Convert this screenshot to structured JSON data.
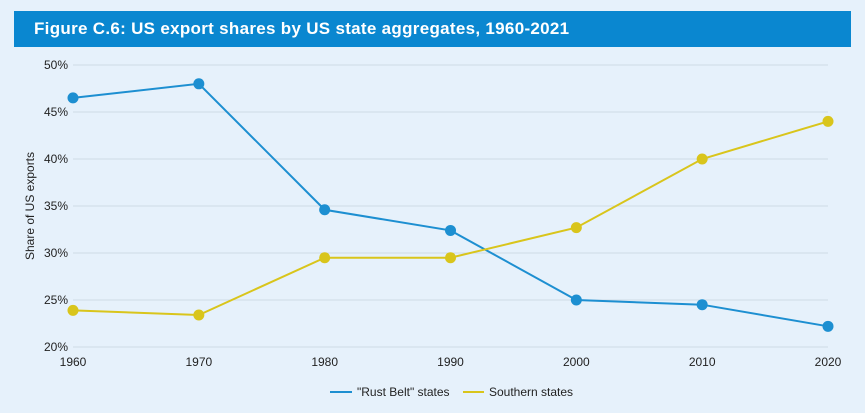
{
  "title": "Figure C.6: US export shares by US state aggregates, 1960-2021",
  "colors": {
    "background": "#e6f1fb",
    "title_bar": "#0a87d0",
    "rust_belt": "#1d8fd1",
    "southern": "#d9c51b",
    "grid": "#cfdbe6"
  },
  "chart_data": {
    "type": "line",
    "title": "Figure C.6: US export shares by US state aggregates, 1960-2021",
    "xlabel": "",
    "ylabel": "Share of US exports",
    "x": [
      1960,
      1970,
      1980,
      1990,
      2000,
      2010,
      2020
    ],
    "x_tick_labels": [
      "1960",
      "1970",
      "1980",
      "1990",
      "2000",
      "2010",
      "2020"
    ],
    "ylim": [
      20,
      50
    ],
    "y_ticks": [
      20,
      25,
      30,
      35,
      40,
      45,
      50
    ],
    "y_tick_labels": [
      "20%",
      "25%",
      "30%",
      "35%",
      "40%",
      "45%",
      "50%"
    ],
    "grid": true,
    "legend_position": "bottom-center",
    "series": [
      {
        "name": "\"Rust Belt\" states",
        "color": "#1d8fd1",
        "values": [
          46.5,
          48.0,
          34.6,
          32.4,
          25.0,
          24.5,
          22.2
        ]
      },
      {
        "name": "Southern states",
        "color": "#d9c51b",
        "values": [
          23.9,
          23.4,
          29.5,
          29.5,
          32.7,
          40.0,
          44.0
        ]
      }
    ]
  }
}
